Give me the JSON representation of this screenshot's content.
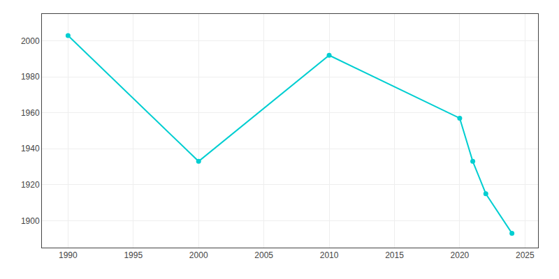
{
  "chart_data": {
    "type": "line",
    "x": [
      1990,
      2000,
      2010,
      2020,
      2021,
      2022,
      2024
    ],
    "values": [
      2003,
      1933,
      1992,
      1957,
      1933,
      1915,
      1893
    ],
    "color": "#00CED1",
    "marker": "circle",
    "line_style": "solid",
    "xlim": [
      1988,
      2026
    ],
    "ylim": [
      1885,
      2015
    ],
    "xticks": [
      1990,
      1995,
      2000,
      2005,
      2010,
      2015,
      2020,
      2025
    ],
    "yticks": [
      1900,
      1920,
      1940,
      1960,
      1980,
      2000
    ],
    "grid": true
  }
}
